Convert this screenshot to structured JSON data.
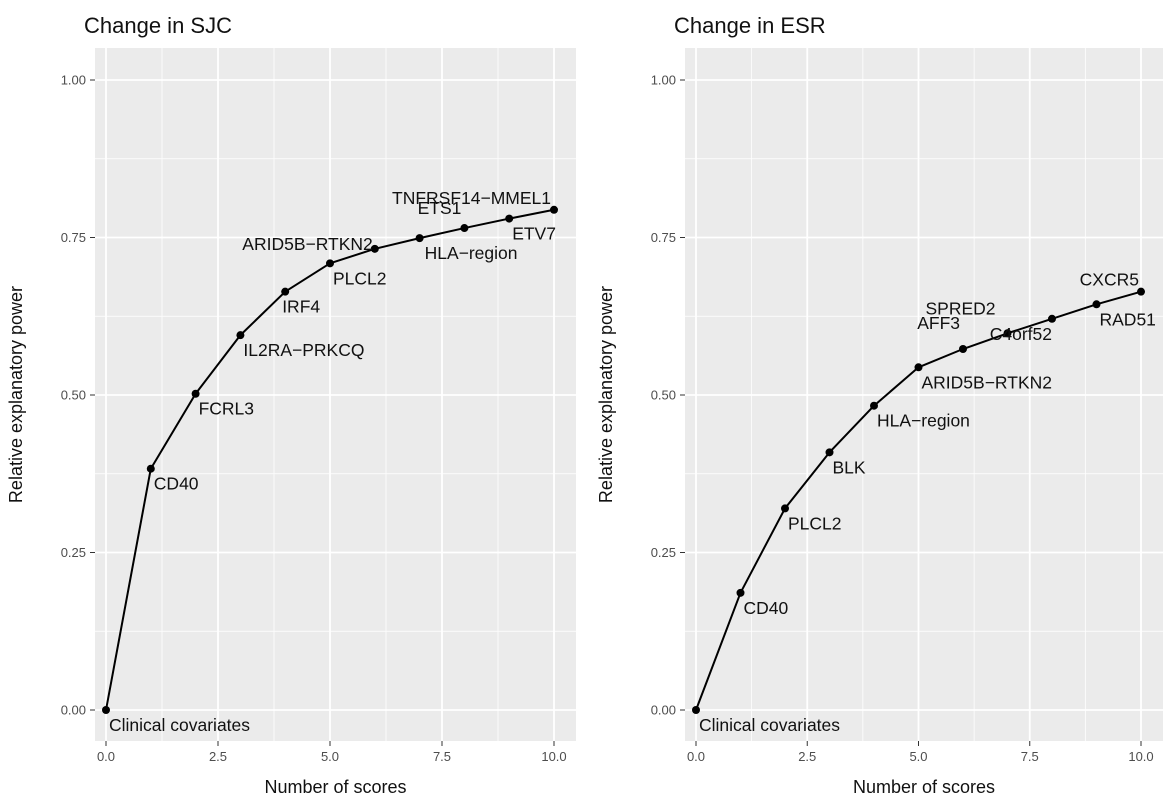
{
  "colors": {
    "panel_background": "#ebebeb",
    "gridline": "#ffffff",
    "line": "#000000",
    "point": "#000000",
    "tick": "#333333"
  },
  "chart_data": [
    {
      "type": "line",
      "title": "Change in SJC",
      "xlabel": "Number of scores",
      "ylabel": "Relative explanatory power",
      "xlim": [
        0,
        10
      ],
      "ylim": [
        0,
        1
      ],
      "x_ticks": [
        0,
        2.5,
        5,
        7.5,
        10
      ],
      "x_tick_labels": [
        "0.0",
        "2.5",
        "5.0",
        "7.5",
        "10.0"
      ],
      "y_ticks": [
        0,
        0.25,
        0.5,
        0.75,
        1
      ],
      "y_tick_labels": [
        "0.00",
        "0.25",
        "0.50",
        "0.75",
        "1.00"
      ],
      "grid": true,
      "points": [
        {
          "x": 0,
          "y": 0.0,
          "label": "Clinical covariates"
        },
        {
          "x": 1,
          "y": 0.383,
          "label": "CD40"
        },
        {
          "x": 2,
          "y": 0.502,
          "label": "FCRL3"
        },
        {
          "x": 3,
          "y": 0.595,
          "label": "IL2RA−PRKCQ"
        },
        {
          "x": 4,
          "y": 0.664,
          "label": "IRF4"
        },
        {
          "x": 5,
          "y": 0.709,
          "label": "PLCL2"
        },
        {
          "x": 6,
          "y": 0.732,
          "label": "ARID5B−RTKN2"
        },
        {
          "x": 7,
          "y": 0.749,
          "label": "HLA−region"
        },
        {
          "x": 8,
          "y": 0.765,
          "label": "ETS1"
        },
        {
          "x": 9,
          "y": 0.78,
          "label": "ETV7"
        },
        {
          "x": 10,
          "y": 0.794,
          "label": "TNFRSF14−MMEL1"
        }
      ]
    },
    {
      "type": "line",
      "title": "Change in ESR",
      "xlabel": "Number of scores",
      "ylabel": "Relative explanatory power",
      "xlim": [
        0,
        10
      ],
      "ylim": [
        0,
        1
      ],
      "x_ticks": [
        0,
        2.5,
        5,
        7.5,
        10
      ],
      "x_tick_labels": [
        "0.0",
        "2.5",
        "5.0",
        "7.5",
        "10.0"
      ],
      "y_ticks": [
        0,
        0.25,
        0.5,
        0.75,
        1
      ],
      "y_tick_labels": [
        "0.00",
        "0.25",
        "0.50",
        "0.75",
        "1.00"
      ],
      "grid": true,
      "points": [
        {
          "x": 0,
          "y": 0.0,
          "label": "Clinical covariates"
        },
        {
          "x": 1,
          "y": 0.186,
          "label": "CD40"
        },
        {
          "x": 2,
          "y": 0.32,
          "label": "PLCL2"
        },
        {
          "x": 3,
          "y": 0.409,
          "label": "BLK"
        },
        {
          "x": 4,
          "y": 0.483,
          "label": "HLA−region"
        },
        {
          "x": 5,
          "y": 0.544,
          "label": "ARID5B−RTKN2"
        },
        {
          "x": 6,
          "y": 0.573,
          "label": "AFF3"
        },
        {
          "x": 7,
          "y": 0.598,
          "label": "SPRED2"
        },
        {
          "x": 8,
          "y": 0.621,
          "label": "C4orf52"
        },
        {
          "x": 9,
          "y": 0.644,
          "label": "RAD51"
        },
        {
          "x": 10,
          "y": 0.664,
          "label": "CXCR5"
        }
      ]
    }
  ]
}
